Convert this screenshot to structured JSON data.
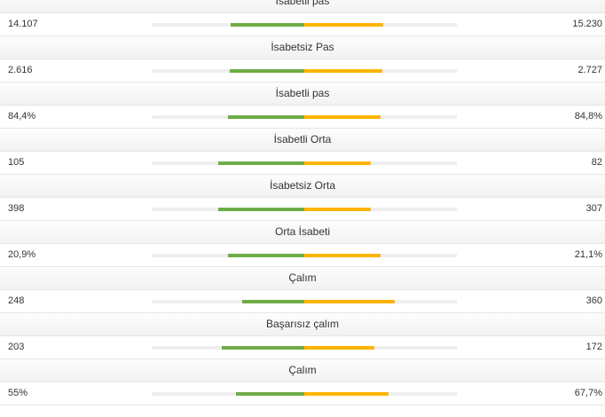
{
  "colors": {
    "home": "#6fac46",
    "away": "#ffb400",
    "track": "#eeeeee"
  },
  "stats": [
    {
      "label": "İsabetli pas",
      "home": "14.107",
      "away": "15.230"
    },
    {
      "label": "İsabetsiz Pas",
      "home": "2.616",
      "away": "2.727"
    },
    {
      "label": "İsabetli pas",
      "home": "84,4%",
      "away": "84,8%"
    },
    {
      "label": "İsabetli Orta",
      "home": "105",
      "away": "82"
    },
    {
      "label": "İsabetsiz Orta",
      "home": "398",
      "away": "307"
    },
    {
      "label": "Orta İsabeti",
      "home": "20,9%",
      "away": "21,1%"
    },
    {
      "label": "Çalım",
      "home": "248",
      "away": "360"
    },
    {
      "label": "Başarısız çalım",
      "home": "203",
      "away": "172"
    },
    {
      "label": "Çalım",
      "home": "55%",
      "away": "67,7%"
    }
  ]
}
